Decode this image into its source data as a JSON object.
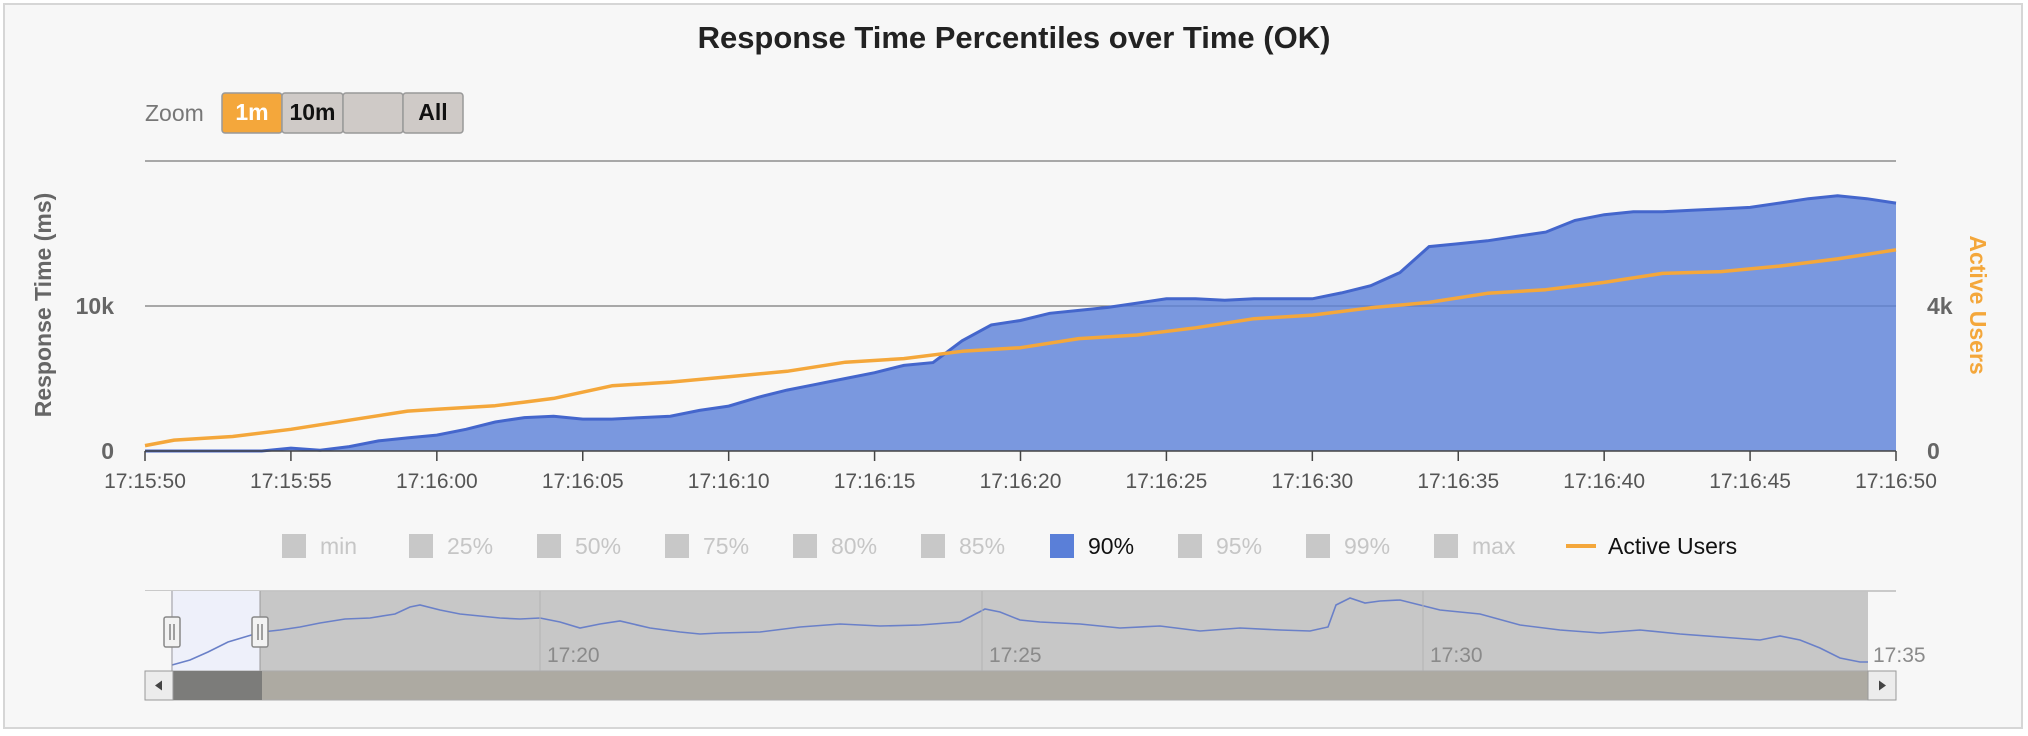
{
  "chart_data": {
    "type": "area",
    "title": "Response Time Percentiles over Time (OK)",
    "y_left": {
      "label": "Response Time (ms)",
      "ticks": [
        "0",
        "10k"
      ],
      "range": [
        0,
        20000
      ]
    },
    "y_right": {
      "label": "Active Users",
      "ticks": [
        "0",
        "4k"
      ],
      "range": [
        0,
        8000
      ]
    },
    "x_ticks": [
      "17:15:50",
      "17:15:55",
      "17:16:00",
      "17:16:05",
      "17:16:10",
      "17:16:15",
      "17:16:20",
      "17:16:25",
      "17:16:30",
      "17:16:35",
      "17:16:40",
      "17:16:45",
      "17:16:50"
    ],
    "x_range_seconds": [
      0,
      60
    ],
    "grid": true,
    "legend_placement": "bottom",
    "series": [
      {
        "name": "90%",
        "type": "area",
        "axis": "left",
        "color": "#5a7fd8",
        "x": [
          0,
          1,
          2,
          3,
          4,
          5,
          6,
          7,
          8,
          9,
          10,
          11,
          12,
          13,
          14,
          15,
          16,
          17,
          18,
          19,
          20,
          21,
          22,
          23,
          24,
          25,
          26,
          27,
          28,
          29,
          30,
          31,
          32,
          33,
          34,
          35,
          36,
          37,
          38,
          39,
          40,
          41,
          42,
          43,
          44,
          45,
          46,
          47,
          48,
          49,
          50,
          51,
          52,
          53,
          54,
          55,
          56,
          57,
          58,
          59,
          60
        ],
        "values": [
          0,
          0,
          0,
          0,
          0,
          200,
          50,
          300,
          700,
          900,
          1100,
          1500,
          2000,
          2300,
          2400,
          2200,
          2200,
          2300,
          2400,
          2800,
          3100,
          3700,
          4200,
          4600,
          5000,
          5400,
          5900,
          6100,
          7600,
          8700,
          9000,
          9500,
          9700,
          9900,
          10200,
          10500,
          10500,
          10400,
          10500,
          10500,
          10500,
          10900,
          11400,
          12300,
          14100,
          14300,
          14500,
          14800,
          15100,
          15900,
          16300,
          16500,
          16500,
          16600,
          16700,
          16800,
          17100,
          17400,
          17600,
          17400,
          17100
        ]
      },
      {
        "name": "Active Users",
        "type": "line",
        "axis": "right",
        "color": "#f4a73b",
        "x": [
          0,
          1,
          3,
          5,
          7,
          9,
          10,
          11,
          12,
          13,
          14,
          16,
          18,
          20,
          22,
          24,
          26,
          28,
          30,
          32,
          34,
          36,
          38,
          40,
          42,
          44,
          46,
          48,
          50,
          52,
          54,
          56,
          58,
          60
        ],
        "values": [
          150,
          300,
          400,
          600,
          850,
          1100,
          1150,
          1200,
          1250,
          1350,
          1450,
          1800,
          1900,
          2050,
          2200,
          2450,
          2550,
          2750,
          2850,
          3100,
          3200,
          3400,
          3650,
          3750,
          3950,
          4100,
          4350,
          4450,
          4650,
          4900,
          4950,
          5100,
          5300,
          5550
        ]
      }
    ],
    "legend": [
      {
        "name": "min",
        "color": "#c8c8c8",
        "enabled": false,
        "symbol": "square"
      },
      {
        "name": "25%",
        "color": "#c8c8c8",
        "enabled": false,
        "symbol": "square"
      },
      {
        "name": "50%",
        "color": "#c8c8c8",
        "enabled": false,
        "symbol": "square"
      },
      {
        "name": "75%",
        "color": "#c8c8c8",
        "enabled": false,
        "symbol": "square"
      },
      {
        "name": "80%",
        "color": "#c8c8c8",
        "enabled": false,
        "symbol": "square"
      },
      {
        "name": "85%",
        "color": "#c8c8c8",
        "enabled": false,
        "symbol": "square"
      },
      {
        "name": "90%",
        "color": "#5a7fd8",
        "enabled": true,
        "symbol": "square"
      },
      {
        "name": "95%",
        "color": "#c8c8c8",
        "enabled": false,
        "symbol": "square"
      },
      {
        "name": "99%",
        "color": "#c8c8c8",
        "enabled": false,
        "symbol": "square"
      },
      {
        "name": "max",
        "color": "#c8c8c8",
        "enabled": false,
        "symbol": "square"
      },
      {
        "name": "Active Users",
        "color": "#f4a73b",
        "enabled": true,
        "symbol": "line"
      }
    ],
    "navigator": {
      "labels": [
        "17:20",
        "17:25",
        "17:30",
        "17:35"
      ],
      "selected_fraction": [
        0.0,
        0.05
      ]
    }
  },
  "zoom": {
    "label": "Zoom",
    "buttons": [
      {
        "label": "1m",
        "active": true
      },
      {
        "label": "10m",
        "active": false
      },
      {
        "label": "",
        "active": false
      },
      {
        "label": "All",
        "active": false
      }
    ]
  },
  "colors": {
    "accent": "#f4a73b",
    "series": "#5a7fd8",
    "active_btn": "#f4a73b"
  }
}
